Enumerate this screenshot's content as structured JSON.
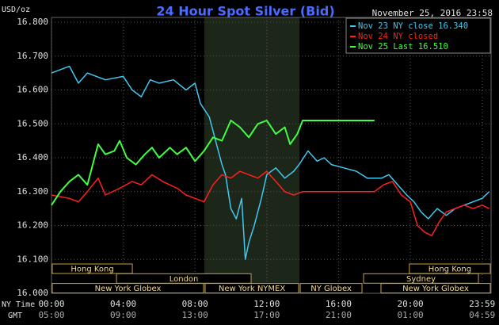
{
  "chart_data": {
    "type": "line",
    "title": "24 Hour Spot Silver (Bid)",
    "timestamp": "November 25, 2016 23:58",
    "y_label": "USD/oz",
    "x_row_labels": [
      "NY Time",
      "GMT"
    ],
    "xlim": [
      0,
      24.5
    ],
    "xticks": [
      {
        "value": 0,
        "label": "00:00"
      },
      {
        "value": 4,
        "label": "04:00"
      },
      {
        "value": 8,
        "label": "08:00"
      },
      {
        "value": 12,
        "label": "12:00"
      },
      {
        "value": 16,
        "label": "16:00"
      },
      {
        "value": 20,
        "label": "20:00"
      },
      {
        "value": 24,
        "label": "23:59"
      }
    ],
    "gmt_labels": [
      "05:00",
      "09:00",
      "13:00",
      "17:00",
      "21:00",
      "01:00",
      "04:59"
    ],
    "ylim": [
      16,
      16.8
    ],
    "yticks": [
      {
        "value": 16,
        "label": "16.000"
      },
      {
        "value": 16.1,
        "label": "16.100"
      },
      {
        "value": 16.2,
        "label": "16.200"
      },
      {
        "value": 16.3,
        "label": "16.300"
      },
      {
        "value": 16.4,
        "label": "16.400"
      },
      {
        "value": 16.5,
        "label": "16.500"
      },
      {
        "value": 16.6,
        "label": "16.600"
      },
      {
        "value": 16.7,
        "label": "16.700"
      },
      {
        "value": 16.8,
        "label": "16.800"
      }
    ],
    "grid": true,
    "series": [
      {
        "name": "Nov 23 NY close 16.340",
        "color": "#40c8f0",
        "x": [
          0,
          1,
          1.5,
          2,
          3,
          4,
          4.5,
          5,
          5.5,
          6,
          6.8,
          7.5,
          8,
          8.3,
          8.8,
          9.1,
          9.5,
          9.7,
          10,
          10.3,
          10.6,
          10.8,
          11,
          11.3,
          11.7,
          12,
          12.5,
          13,
          13.5,
          13.8,
          14.3,
          14.8,
          15.2,
          15.6,
          16.3,
          17,
          17.6,
          18.4,
          18.8,
          19.3,
          19.8,
          20.2,
          20.6,
          21,
          21.5,
          22,
          22.5,
          23,
          23.5,
          24,
          24.4
        ],
        "values": [
          16.65,
          16.67,
          16.62,
          16.65,
          16.63,
          16.64,
          16.6,
          16.58,
          16.63,
          16.62,
          16.63,
          16.6,
          16.62,
          16.56,
          16.52,
          16.46,
          16.38,
          16.35,
          16.25,
          16.22,
          16.28,
          16.1,
          16.15,
          16.2,
          16.28,
          16.35,
          16.37,
          16.34,
          16.36,
          16.38,
          16.42,
          16.39,
          16.4,
          16.38,
          16.37,
          16.36,
          16.34,
          16.34,
          16.35,
          16.32,
          16.29,
          16.27,
          16.24,
          16.22,
          16.25,
          16.23,
          16.25,
          16.26,
          16.27,
          16.28,
          16.3
        ]
      },
      {
        "name": "Nov 24 NY closed",
        "color": "#ff2020",
        "x": [
          0,
          1,
          1.5,
          2,
          2.6,
          3,
          3.8,
          4.5,
          5,
          5.6,
          6.2,
          7,
          7.5,
          8,
          8.5,
          9,
          9.5,
          10,
          10.5,
          11,
          11.5,
          12,
          12.5,
          13,
          13.5,
          14,
          18,
          18.5,
          19,
          19.5,
          20,
          20.4,
          20.8,
          21.2,
          21.6,
          22,
          22.5,
          23,
          23.5,
          24,
          24.4
        ],
        "values": [
          16.29,
          16.28,
          16.27,
          16.3,
          16.34,
          16.29,
          16.31,
          16.33,
          16.32,
          16.35,
          16.33,
          16.31,
          16.29,
          16.28,
          16.27,
          16.32,
          16.35,
          16.34,
          16.36,
          16.35,
          16.34,
          16.36,
          16.33,
          16.3,
          16.29,
          16.3,
          16.3,
          16.32,
          16.33,
          16.29,
          16.27,
          16.2,
          16.18,
          16.17,
          16.21,
          16.24,
          16.25,
          16.26,
          16.25,
          16.26,
          16.25
        ]
      },
      {
        "name": "Nov 25 Last 16.510",
        "color": "#40ff40",
        "x": [
          0,
          0.5,
          1,
          1.5,
          2,
          2.3,
          2.6,
          3,
          3.5,
          3.8,
          4.2,
          4.7,
          5.2,
          5.6,
          6,
          6.6,
          7,
          7.5,
          8,
          8.5,
          9,
          9.5,
          10,
          10.5,
          11,
          11.5,
          12,
          12.5,
          13,
          13.3,
          13.7,
          14,
          18
        ],
        "values": [
          16.26,
          16.3,
          16.33,
          16.35,
          16.32,
          16.38,
          16.44,
          16.41,
          16.42,
          16.45,
          16.4,
          16.38,
          16.41,
          16.43,
          16.4,
          16.43,
          16.41,
          16.43,
          16.39,
          16.42,
          16.46,
          16.45,
          16.51,
          16.49,
          16.46,
          16.5,
          16.51,
          16.47,
          16.49,
          16.44,
          16.47,
          16.51,
          16.51
        ]
      }
    ],
    "sessions": [
      [
        {
          "label": "Hong Kong",
          "start": 0,
          "end": 4.55
        },
        {
          "label": "Hong Kong",
          "start": 19.9,
          "end": 24.5
        }
      ],
      [
        {
          "label": "London",
          "start": 3.58,
          "end": 11.17
        },
        {
          "label": "Sydney",
          "start": 17.35,
          "end": 23.84
        }
      ],
      [
        {
          "label": "New York Globex",
          "start": 0,
          "end": 8.52
        },
        {
          "label": "New York NYMEX",
          "start": 8.52,
          "end": 13.82
        },
        {
          "label": "NY Globex",
          "start": 13.82,
          "end": 17.35
        },
        {
          "label": "New York Globex",
          "start": 18.32,
          "end": 24.5
        }
      ]
    ]
  }
}
